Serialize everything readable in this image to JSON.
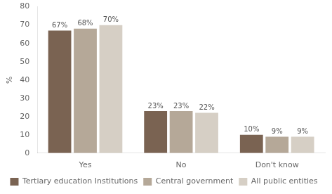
{
  "chart_data": {
    "type": "bar",
    "ylabel": "%",
    "categories": [
      "Yes",
      "No",
      "Don't know"
    ],
    "series": [
      {
        "name": "Tertiary education Institutions",
        "color": "#7a6352",
        "values": [
          67,
          23,
          10
        ],
        "value_labels": [
          "67%",
          "23%",
          "10%"
        ]
      },
      {
        "name": "Central government",
        "color": "#b5a898",
        "values": [
          68,
          23,
          9
        ],
        "value_labels": [
          "68%",
          "23%",
          "9%"
        ]
      },
      {
        "name": "All public entities",
        "color": "#d6cfc5",
        "values": [
          70,
          22,
          9
        ],
        "value_labels": [
          "70%",
          "22%",
          "9%"
        ]
      }
    ],
    "ylim": [
      0,
      80
    ],
    "yticks": [
      0,
      10,
      20,
      30,
      40,
      50,
      60,
      70,
      80
    ],
    "grid": false,
    "legend": "bottom",
    "data_labels": true
  }
}
